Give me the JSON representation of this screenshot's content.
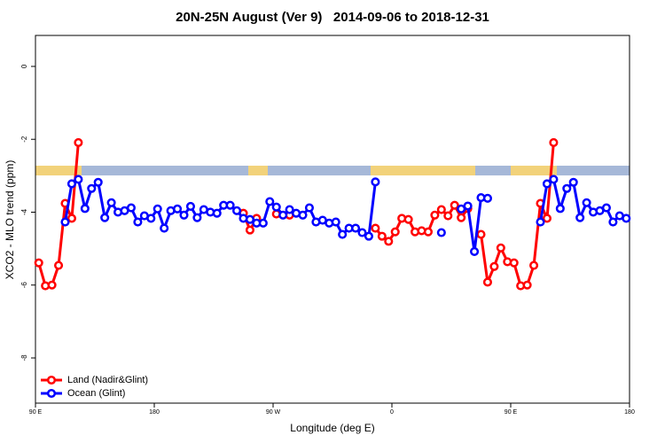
{
  "chart_data": {
    "type": "line",
    "title": "20N-25N August (Ver 9)   2014-09-06 to 2018-12-31",
    "xlabel": "Longitude (deg E)",
    "ylabel": "XCO2 - MLO trend (ppm)",
    "x": [
      92.5,
      97.5,
      102.5,
      107.5,
      112.5,
      117.5,
      122.5,
      127.5,
      132.5,
      137.5,
      142.5,
      147.5,
      152.5,
      157.5,
      162.5,
      167.5,
      172.5,
      177.5,
      182.5,
      187.5,
      192.5,
      197.5,
      202.5,
      207.5,
      212.5,
      217.5,
      222.5,
      227.5,
      232.5,
      237.5,
      242.5,
      247.5,
      252.5,
      257.5,
      262.5,
      267.5,
      272.5,
      277.5,
      282.5,
      287.5,
      292.5,
      297.5,
      302.5,
      307.5,
      312.5,
      317.5,
      322.5,
      327.5,
      332.5,
      337.5,
      342.5,
      347.5,
      352.5,
      357.5,
      362.5,
      367.5,
      372.5,
      377.5,
      382.5,
      387.5,
      392.5,
      397.5,
      402.5,
      407.5,
      412.5,
      417.5,
      422.5,
      427.5,
      432.5,
      437.5,
      442.5,
      447.5,
      452.5,
      457.5,
      462.5,
      467.5,
      472.5,
      477.5,
      482.5,
      487.5,
      492.5,
      497.5,
      502.5,
      507.5,
      512.5,
      517.5,
      522.5,
      527.5,
      532.5,
      537.5
    ],
    "series": [
      {
        "name": "Land (Nadir&Glint)",
        "color": "#ff0000",
        "values": [
          -5.39,
          -6.02,
          -6.0,
          -5.46,
          -3.76,
          -4.17,
          -2.09,
          null,
          null,
          null,
          null,
          null,
          null,
          null,
          null,
          null,
          null,
          null,
          null,
          null,
          null,
          null,
          null,
          null,
          null,
          null,
          null,
          null,
          null,
          null,
          null,
          -4.03,
          -4.49,
          -4.17,
          null,
          null,
          -4.05,
          null,
          -4.08,
          null,
          null,
          null,
          null,
          null,
          null,
          null,
          null,
          null,
          null,
          null,
          null,
          -4.44,
          -4.66,
          -4.8,
          -4.54,
          -4.17,
          -4.2,
          -4.54,
          -4.51,
          -4.54,
          -4.08,
          -3.93,
          -4.1,
          -3.81,
          -4.15,
          -3.9,
          null,
          -4.61,
          -5.92,
          -5.49,
          -4.98,
          -5.36,
          -5.39,
          -6.02,
          -6.0,
          -5.46,
          -3.76,
          -4.17,
          -2.09,
          null,
          null,
          null,
          null,
          null,
          null,
          null,
          null,
          null,
          null,
          null
        ]
      },
      {
        "name": "Ocean (Glint)",
        "color": "#0000ff",
        "values": [
          null,
          null,
          null,
          null,
          -4.27,
          -3.22,
          -3.1,
          -3.9,
          -3.35,
          -3.18,
          -4.15,
          -3.74,
          -4.0,
          -3.96,
          -3.88,
          -4.27,
          -4.1,
          -4.17,
          -3.91,
          -4.44,
          -3.96,
          -3.91,
          -4.08,
          -3.84,
          -4.15,
          -3.93,
          -4.0,
          -4.03,
          -3.81,
          -3.81,
          -3.96,
          -4.17,
          -4.2,
          -4.3,
          -4.3,
          -3.71,
          -3.86,
          -4.08,
          -3.93,
          -4.03,
          -4.08,
          -3.88,
          -4.27,
          -4.22,
          -4.3,
          -4.27,
          -4.61,
          -4.44,
          -4.44,
          -4.56,
          -4.66,
          -3.17,
          null,
          null,
          null,
          null,
          null,
          null,
          null,
          null,
          null,
          -4.56,
          null,
          null,
          -3.91,
          -3.83,
          -5.08,
          -3.6,
          -3.62,
          null,
          null,
          null,
          null,
          null,
          null,
          null,
          -4.27,
          -3.22,
          -3.1,
          -3.9,
          -3.35,
          -3.18,
          -4.15,
          -3.74,
          -4.0,
          -3.96,
          -3.88,
          -4.27,
          -4.1,
          -4.17
        ]
      }
    ],
    "xlim": [
      90,
      540
    ],
    "xticks": [
      {
        "value": 90,
        "label": "90 E"
      },
      180,
      {
        "value": 270,
        "label": "90 W"
      },
      {
        "value": 360,
        "label": "0"
      },
      {
        "value": 450,
        "label": "90 E"
      },
      {
        "value": 540,
        "label": "180"
      }
    ],
    "ylim": [
      -9.24,
      0.85
    ],
    "yticks": [
      0,
      -2,
      -4,
      -6,
      -8
    ],
    "legend": "bottom-left"
  }
}
